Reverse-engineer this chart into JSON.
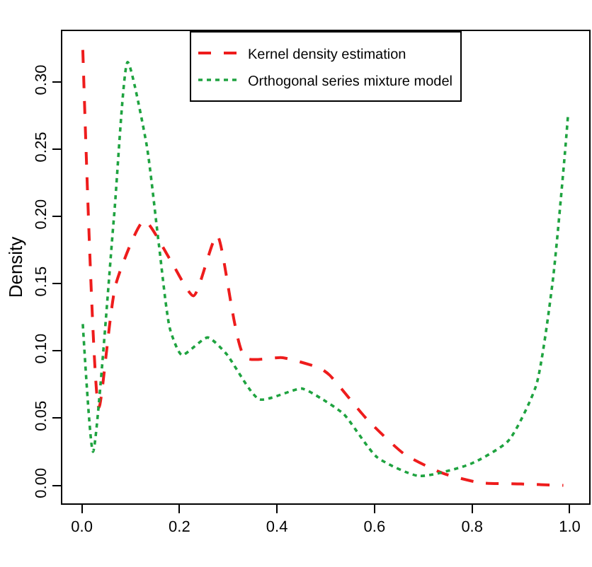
{
  "chart_data": {
    "type": "line",
    "ylabel": "Density",
    "xlim": [
      -0.04,
      1.04
    ],
    "ylim": [
      -0.0134,
      0.338
    ],
    "xticks": [
      {
        "value": 0,
        "label": "0.0"
      },
      {
        "value": 0.2,
        "label": "0.2"
      },
      {
        "value": 0.4,
        "label": "0.4"
      },
      {
        "value": 0.6,
        "label": "0.6"
      },
      {
        "value": 0.8,
        "label": "0.8"
      },
      {
        "value": 1,
        "label": "1.0"
      }
    ],
    "yticks": [
      {
        "value": 0,
        "label": "0.00"
      },
      {
        "value": 0.05,
        "label": "0.05"
      },
      {
        "value": 0.1,
        "label": "0.10"
      },
      {
        "value": 0.15,
        "label": "0.15"
      },
      {
        "value": 0.2,
        "label": "0.20"
      },
      {
        "value": 0.25,
        "label": "0.25"
      },
      {
        "value": 0.3,
        "label": "0.30"
      }
    ],
    "grid": false,
    "legend": "top",
    "marker": "none",
    "series": [
      {
        "name": "Kernel density estimation",
        "color": "#ee1c1c",
        "line_style": "dashed",
        "x": [
          0.002,
          0.035,
          0.07,
          0.128,
          0.181,
          0.229,
          0.277,
          0.335,
          0.412,
          0.489,
          0.508,
          0.585,
          0.662,
          0.74,
          0.816,
          0.9,
          0.987
        ],
        "values": [
          0.324,
          0.058,
          0.15,
          0.197,
          0.168,
          0.141,
          0.186,
          0.095,
          0.095,
          0.087,
          0.082,
          0.049,
          0.023,
          0.009,
          0.002,
          0.001,
          0
        ]
      },
      {
        "name": "Orthogonal series mixture model",
        "color": "#1fa340",
        "line_style": "dotted",
        "x": [
          0.002,
          0.023,
          0.066,
          0.094,
          0.133,
          0.158,
          0.181,
          0.205,
          0.258,
          0.296,
          0.364,
          0.451,
          0.489,
          0.537,
          0.605,
          0.691,
          0.797,
          0.874,
          0.931,
          0.965,
          0.99,
          0.997
        ],
        "values": [
          0.12,
          0.025,
          0.2,
          0.315,
          0.253,
          0.179,
          0.116,
          0.097,
          0.11,
          0.098,
          0.064,
          0.072,
          0.065,
          0.053,
          0.021,
          0.007,
          0.016,
          0.033,
          0.074,
          0.151,
          0.246,
          0.277
        ]
      }
    ]
  }
}
